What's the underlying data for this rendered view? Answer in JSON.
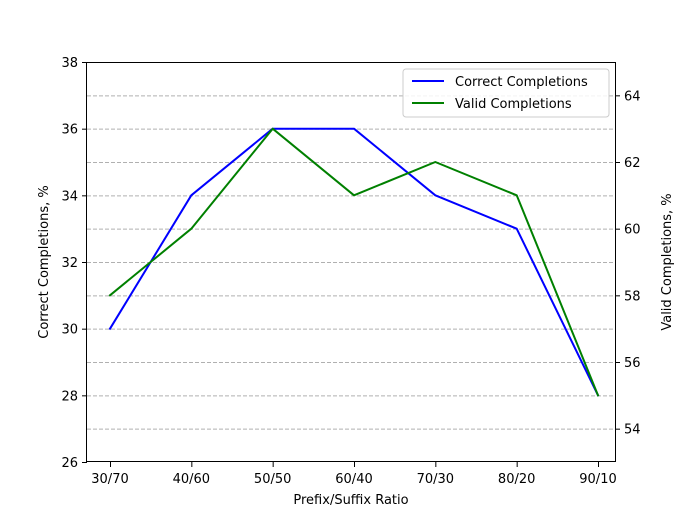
{
  "chart_data": {
    "type": "line",
    "categories": [
      "30/70",
      "40/60",
      "50/50",
      "60/40",
      "70/30",
      "80/20",
      "90/10"
    ],
    "xlabel": "Prefix/Suffix Ratio",
    "ylabel_left": "Correct Completions, %",
    "ylabel_right": "Valid Completions, %",
    "ylim_left": [
      26,
      38
    ],
    "ylim_right": [
      53,
      65
    ],
    "yticks_left": [
      26,
      28,
      30,
      32,
      34,
      36,
      38
    ],
    "yticks_right": [
      54,
      56,
      58,
      60,
      62,
      64
    ],
    "grid": "horizontal dashed (left axis)",
    "legend_placement": "top-right",
    "series": [
      {
        "name": "Correct Completions",
        "axis": "left",
        "color": "#0000ff",
        "values": [
          30,
          34,
          36,
          36,
          34,
          33,
          28
        ]
      },
      {
        "name": "Valid Completions",
        "axis": "right",
        "color": "#008000",
        "values": [
          58,
          60,
          63,
          61,
          62,
          61,
          55
        ]
      }
    ]
  }
}
